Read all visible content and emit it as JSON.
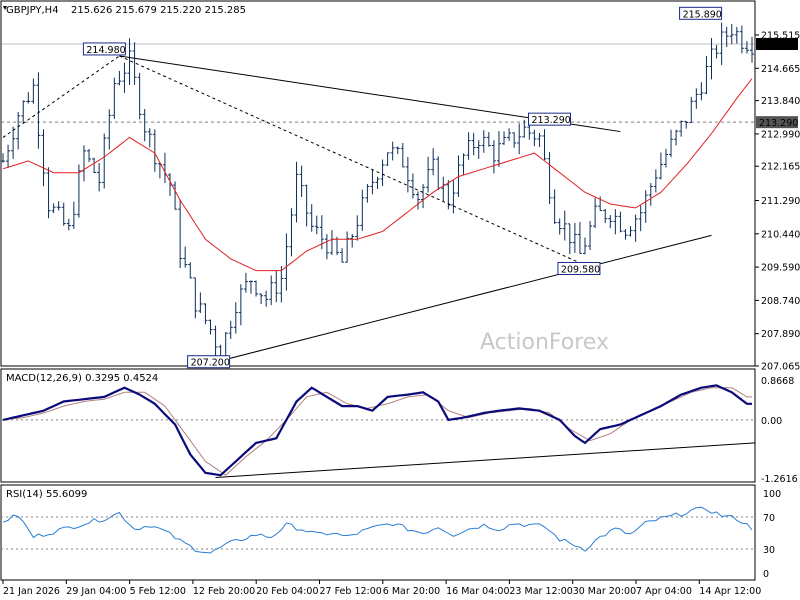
{
  "header": {
    "symbol": "GBPJPY,H4",
    "ohlc": "215.626 215.679 215.220 215.285"
  },
  "watermark": "ActionForex",
  "colors": {
    "bar": "#0b2d5a",
    "ma": "#e02020",
    "macd_line": "#0a0a7a",
    "macd_signal": "#b08080",
    "rsi": "#2a7fd4",
    "trend": "#000000",
    "grid": "#808080",
    "price_tag_bg": "#000000"
  },
  "chart_data": [
    {
      "type": "line",
      "panel": "price",
      "ylim": [
        207.065,
        215.515
      ],
      "y_ticks": [
        "215.515",
        "214.665",
        "213.840",
        "212.990",
        "212.165",
        "211.290",
        "210.440",
        "209.590",
        "208.740",
        "207.890",
        "207.065"
      ],
      "current_price": "215.285",
      "hline_level": "213.290",
      "annotations": [
        "214.980",
        "207.200",
        "213.290",
        "209.580",
        "215.890"
      ],
      "x_labels": [
        "21 Jan 2026",
        "29 Jan 04:00",
        "5 Feb 12:00",
        "12 Feb 20:00",
        "20 Feb 04:00",
        "27 Feb 12:00",
        "6 Mar 20:00",
        "16 Mar 04:00",
        "23 Mar 12:00",
        "30 Mar 20:00",
        "7 Apr 04:00",
        "14 Apr 12:00"
      ],
      "close_path": [
        [
          0,
          212.3
        ],
        [
          3,
          213.5
        ],
        [
          6,
          214.2
        ],
        [
          9,
          211.2
        ],
        [
          13,
          210.5
        ],
        [
          16,
          212.5
        ],
        [
          19,
          211.8
        ],
        [
          22,
          214.3
        ],
        [
          25,
          214.85
        ],
        [
          28,
          213.2
        ],
        [
          30,
          212.5
        ],
        [
          33,
          211.7
        ],
        [
          35,
          210.0
        ],
        [
          38,
          208.7
        ],
        [
          41,
          208.0
        ],
        [
          43,
          207.4
        ],
        [
          46,
          208.7
        ],
        [
          49,
          209.3
        ],
        [
          52,
          208.8
        ],
        [
          55,
          209.3
        ],
        [
          58,
          211.8
        ],
        [
          61,
          210.6
        ],
        [
          64,
          210.2
        ],
        [
          67,
          209.7
        ],
        [
          70,
          210.8
        ],
        [
          73,
          211.8
        ],
        [
          76,
          212.6
        ],
        [
          79,
          212.3
        ],
        [
          82,
          211.4
        ],
        [
          85,
          212.1
        ],
        [
          88,
          211.3
        ],
        [
          91,
          212.4
        ],
        [
          94,
          212.9
        ],
        [
          97,
          212.5
        ],
        [
          100,
          212.8
        ],
        [
          103,
          213.1
        ],
        [
          106,
          212.9
        ],
        [
          109,
          211.0
        ],
        [
          112,
          210.4
        ],
        [
          114,
          209.9
        ],
        [
          117,
          210.9
        ],
        [
          120,
          211.0
        ],
        [
          123,
          210.6
        ],
        [
          126,
          211.0
        ],
        [
          129,
          212.0
        ],
        [
          132,
          212.7
        ],
        [
          135,
          213.4
        ],
        [
          138,
          214.3
        ],
        [
          141,
          215.2
        ],
        [
          144,
          215.7
        ],
        [
          146,
          215.4
        ],
        [
          148,
          215.3
        ]
      ],
      "ma_path": [
        [
          0,
          212.1
        ],
        [
          5,
          212.3
        ],
        [
          10,
          212.0
        ],
        [
          15,
          212.0
        ],
        [
          20,
          212.4
        ],
        [
          25,
          212.9
        ],
        [
          30,
          212.5
        ],
        [
          35,
          211.3
        ],
        [
          40,
          210.3
        ],
        [
          45,
          209.8
        ],
        [
          50,
          209.5
        ],
        [
          55,
          209.5
        ],
        [
          60,
          210.0
        ],
        [
          65,
          210.3
        ],
        [
          70,
          210.3
        ],
        [
          75,
          210.5
        ],
        [
          80,
          211.0
        ],
        [
          85,
          211.5
        ],
        [
          90,
          211.9
        ],
        [
          95,
          212.1
        ],
        [
          100,
          212.3
        ],
        [
          105,
          212.5
        ],
        [
          110,
          212.0
        ],
        [
          115,
          211.5
        ],
        [
          120,
          211.2
        ],
        [
          125,
          211.1
        ],
        [
          130,
          211.5
        ],
        [
          135,
          212.2
        ],
        [
          140,
          213.0
        ],
        [
          145,
          213.9
        ],
        [
          148,
          214.4
        ]
      ]
    },
    {
      "type": "line",
      "panel": "MACD",
      "title": "MACD(12,26,9) 0.3295 0.4524",
      "ylim": [
        -1.2616,
        0.8668
      ],
      "y_ticks": [
        "0.8668",
        "0.00",
        "-1.2616"
      ],
      "macd": [
        [
          0,
          0.0
        ],
        [
          4,
          0.1
        ],
        [
          8,
          0.2
        ],
        [
          12,
          0.4
        ],
        [
          16,
          0.45
        ],
        [
          20,
          0.5
        ],
        [
          24,
          0.7
        ],
        [
          27,
          0.55
        ],
        [
          30,
          0.35
        ],
        [
          34,
          -0.1
        ],
        [
          37,
          -0.75
        ],
        [
          40,
          -1.15
        ],
        [
          43,
          -1.2
        ],
        [
          46,
          -0.9
        ],
        [
          50,
          -0.5
        ],
        [
          54,
          -0.4
        ],
        [
          58,
          0.4
        ],
        [
          61,
          0.7
        ],
        [
          64,
          0.5
        ],
        [
          67,
          0.3
        ],
        [
          70,
          0.3
        ],
        [
          73,
          0.2
        ],
        [
          76,
          0.5
        ],
        [
          80,
          0.55
        ],
        [
          83,
          0.6
        ],
        [
          86,
          0.4
        ],
        [
          88,
          0.0
        ],
        [
          91,
          0.05
        ],
        [
          95,
          0.15
        ],
        [
          98,
          0.2
        ],
        [
          102,
          0.25
        ],
        [
          106,
          0.2
        ],
        [
          110,
          0.0
        ],
        [
          113,
          -0.35
        ],
        [
          115,
          -0.5
        ],
        [
          118,
          -0.2
        ],
        [
          122,
          -0.1
        ],
        [
          126,
          0.1
        ],
        [
          130,
          0.3
        ],
        [
          134,
          0.55
        ],
        [
          138,
          0.7
        ],
        [
          141,
          0.75
        ],
        [
          144,
          0.6
        ],
        [
          147,
          0.35
        ]
      ],
      "signal": [
        [
          0,
          0.0
        ],
        [
          4,
          0.05
        ],
        [
          8,
          0.15
        ],
        [
          12,
          0.3
        ],
        [
          16,
          0.4
        ],
        [
          20,
          0.45
        ],
        [
          24,
          0.6
        ],
        [
          28,
          0.6
        ],
        [
          32,
          0.3
        ],
        [
          36,
          -0.3
        ],
        [
          40,
          -0.9
        ],
        [
          44,
          -1.2
        ],
        [
          48,
          -0.8
        ],
        [
          52,
          -0.45
        ],
        [
          56,
          0.0
        ],
        [
          60,
          0.5
        ],
        [
          64,
          0.6
        ],
        [
          68,
          0.35
        ],
        [
          72,
          0.25
        ],
        [
          76,
          0.35
        ],
        [
          80,
          0.5
        ],
        [
          84,
          0.55
        ],
        [
          88,
          0.2
        ],
        [
          92,
          0.05
        ],
        [
          96,
          0.15
        ],
        [
          100,
          0.2
        ],
        [
          104,
          0.25
        ],
        [
          108,
          0.15
        ],
        [
          112,
          -0.2
        ],
        [
          116,
          -0.45
        ],
        [
          120,
          -0.3
        ],
        [
          124,
          0.0
        ],
        [
          128,
          0.2
        ],
        [
          132,
          0.4
        ],
        [
          136,
          0.6
        ],
        [
          140,
          0.7
        ],
        [
          144,
          0.7
        ],
        [
          147,
          0.5
        ]
      ]
    },
    {
      "type": "line",
      "panel": "RSI",
      "title": "RSI(14) 55.6099",
      "ylim": [
        0,
        100
      ],
      "y_ticks": [
        "100",
        "70",
        "30",
        "0"
      ],
      "rsi": [
        [
          0,
          65
        ],
        [
          3,
          72
        ],
        [
          6,
          45
        ],
        [
          9,
          50
        ],
        [
          12,
          55
        ],
        [
          16,
          62
        ],
        [
          20,
          68
        ],
        [
          23,
          75
        ],
        [
          26,
          55
        ],
        [
          29,
          60
        ],
        [
          32,
          52
        ],
        [
          35,
          40
        ],
        [
          38,
          30
        ],
        [
          41,
          25
        ],
        [
          44,
          35
        ],
        [
          47,
          42
        ],
        [
          50,
          48
        ],
        [
          53,
          45
        ],
        [
          56,
          60
        ],
        [
          59,
          55
        ],
        [
          62,
          48
        ],
        [
          65,
          50
        ],
        [
          68,
          45
        ],
        [
          71,
          52
        ],
        [
          74,
          58
        ],
        [
          77,
          62
        ],
        [
          80,
          55
        ],
        [
          83,
          50
        ],
        [
          86,
          58
        ],
        [
          89,
          48
        ],
        [
          92,
          55
        ],
        [
          95,
          60
        ],
        [
          98,
          55
        ],
        [
          101,
          62
        ],
        [
          104,
          60
        ],
        [
          107,
          58
        ],
        [
          110,
          42
        ],
        [
          113,
          35
        ],
        [
          115,
          30
        ],
        [
          118,
          45
        ],
        [
          121,
          55
        ],
        [
          124,
          48
        ],
        [
          127,
          62
        ],
        [
          130,
          68
        ],
        [
          133,
          72
        ],
        [
          136,
          78
        ],
        [
          139,
          80
        ],
        [
          142,
          72
        ],
        [
          145,
          68
        ],
        [
          148,
          56
        ]
      ]
    }
  ]
}
